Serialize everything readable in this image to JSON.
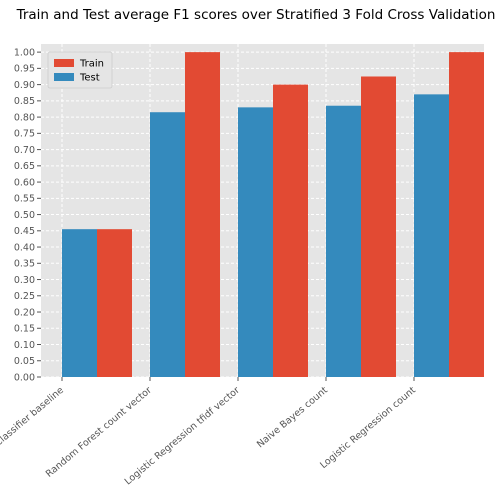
{
  "chart_data": {
    "type": "bar",
    "title": "Train and Test average F1 scores over Stratified 3 Fold Cross Validation",
    "xlabel": "",
    "ylabel": "",
    "categories": [
      "Dummy Classifier baseline",
      "Random Forest count vector",
      "Logistic Regression tfidf vector",
      "Naive Bayes count",
      "Logistic Regression count"
    ],
    "series": [
      {
        "name": "Train",
        "color": "#E24A33",
        "values": [
          0.455,
          1.0,
          0.9,
          0.925,
          1.0
        ]
      },
      {
        "name": "Test",
        "color": "#348ABD",
        "values": [
          0.455,
          0.815,
          0.83,
          0.835,
          0.87
        ]
      }
    ],
    "ylim": [
      0,
      1.025
    ],
    "yticks": [
      "0.00",
      "0.05",
      "0.10",
      "0.15",
      "0.20",
      "0.25",
      "0.30",
      "0.35",
      "0.40",
      "0.45",
      "0.50",
      "0.55",
      "0.60",
      "0.65",
      "0.70",
      "0.75",
      "0.80",
      "0.85",
      "0.90",
      "0.95",
      "1.00"
    ],
    "grid": true,
    "legend_position": "top-left",
    "background": "#E5E5E5",
    "grid_color": "#FFFFFF"
  }
}
